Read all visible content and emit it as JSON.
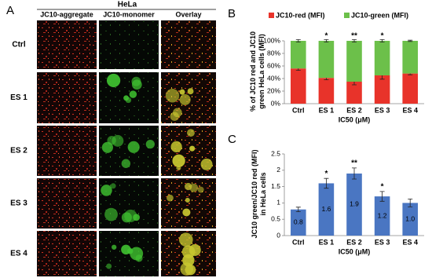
{
  "panel_a": {
    "label": "A",
    "title": "HeLa",
    "columns": [
      "JC10-aggregate",
      "JC10-monomer",
      "Overlay"
    ],
    "rows": [
      "Ctrl",
      "ES 1",
      "ES 2",
      "ES 3",
      "ES 4"
    ]
  },
  "chart_data": [
    {
      "type": "stacked_bar",
      "label": "B",
      "ylabel": "% of JC10 red and JC10 green HeLa cells (MFI)",
      "xlabel": "IC50 (μM)",
      "categories": [
        "Ctrl",
        "ES 1",
        "ES 2",
        "ES 3",
        "ES 4"
      ],
      "series": [
        {
          "name": "JC10-red (MFI)",
          "color": "#e8332a",
          "values": [
            56,
            41,
            35,
            45,
            48
          ],
          "errors": [
            3,
            3,
            5,
            6,
            2
          ]
        },
        {
          "name": "JC10-green (MFI)",
          "color": "#6cc04a",
          "values": [
            44,
            59,
            65,
            55,
            52
          ],
          "errors": [
            2,
            2,
            2,
            2,
            1
          ]
        }
      ],
      "annotations": [
        null,
        "*",
        "**",
        "*",
        null
      ],
      "ylim": [
        0,
        100
      ],
      "yticks": [
        {
          "value": 0,
          "label": "0%"
        },
        {
          "value": 20,
          "label": "20%"
        },
        {
          "value": 40,
          "label": "40%"
        },
        {
          "value": 60,
          "label": "60%"
        },
        {
          "value": 80,
          "label": "80%"
        },
        {
          "value": 100,
          "label": "100%"
        }
      ],
      "grid": false,
      "legend": "top"
    },
    {
      "type": "bar",
      "label": "C",
      "ylabel": "JC10 green/JC10 red (MFI) in HeLa cells",
      "xlabel": "IC50 (μM)",
      "categories": [
        "Ctrl",
        "ES 1",
        "ES 2",
        "ES 3",
        "ES 4"
      ],
      "values": [
        0.8,
        1.6,
        1.9,
        1.2,
        1.0
      ],
      "value_labels": [
        "0.8",
        "1.6",
        "1.9",
        "1.2",
        "1.0"
      ],
      "errors": [
        0.07,
        0.15,
        0.17,
        0.15,
        0.12
      ],
      "color": "#4a76c2",
      "annotations": [
        null,
        "*",
        "**",
        "*",
        null
      ],
      "ylim": [
        0,
        2.5
      ],
      "yticks": [
        0,
        0.5,
        1,
        1.5,
        2,
        2.5
      ],
      "grid": false
    }
  ]
}
